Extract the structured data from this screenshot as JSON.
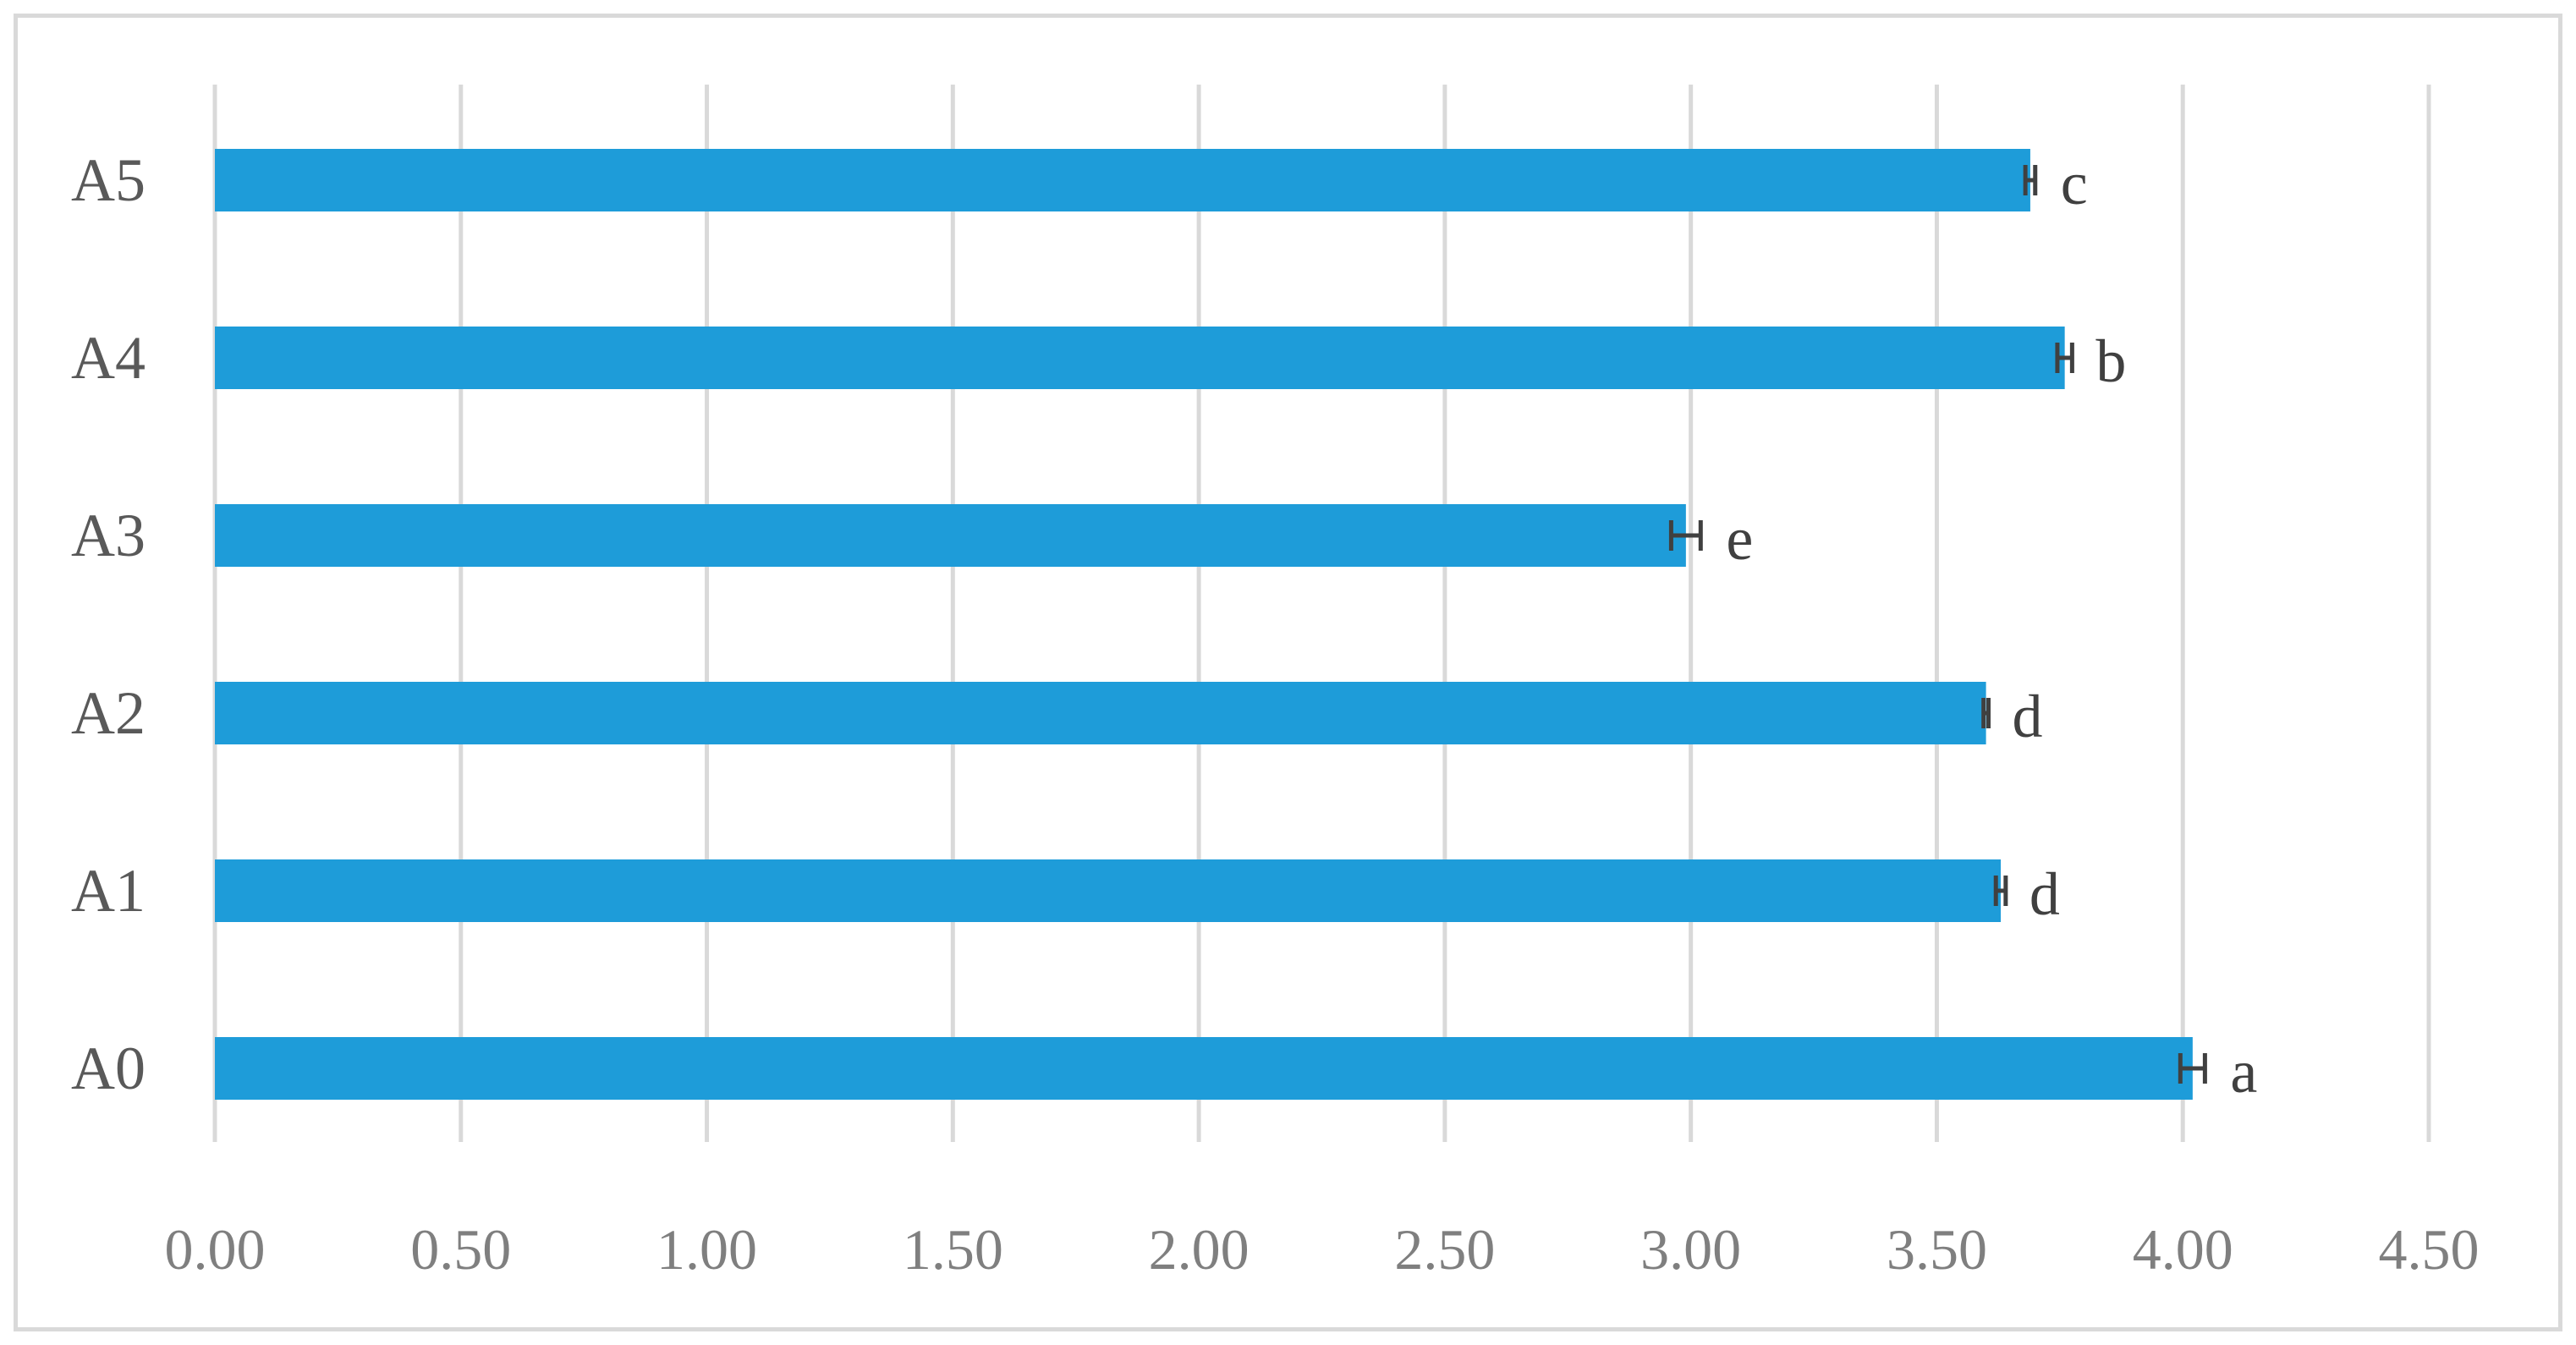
{
  "colors": {
    "bar": "#1e9cd9",
    "grid": "#d9d9d9",
    "error_bar": "#404040"
  },
  "chart_data": {
    "type": "bar",
    "orientation": "horizontal",
    "title": "",
    "xlabel": "",
    "ylabel": "",
    "xlim": [
      0,
      4.5
    ],
    "x_ticks": [
      "0.00",
      "0.50",
      "1.00",
      "1.50",
      "2.00",
      "2.50",
      "3.00",
      "3.50",
      "4.00",
      "4.50"
    ],
    "x_tick_values": [
      0,
      0.5,
      1,
      1.5,
      2,
      2.5,
      3,
      3.5,
      4,
      4.5
    ],
    "grid": "vertical",
    "legend": "none",
    "categories": [
      "A5",
      "A4",
      "A3",
      "A2",
      "A1",
      "A0"
    ],
    "values": [
      3.69,
      3.76,
      2.99,
      3.6,
      3.63,
      4.02
    ],
    "errors": [
      0.01,
      0.015,
      0.03,
      0.005,
      0.01,
      0.025
    ],
    "significance_letters": [
      "c",
      "b",
      "e",
      "d",
      "d",
      "a"
    ]
  }
}
